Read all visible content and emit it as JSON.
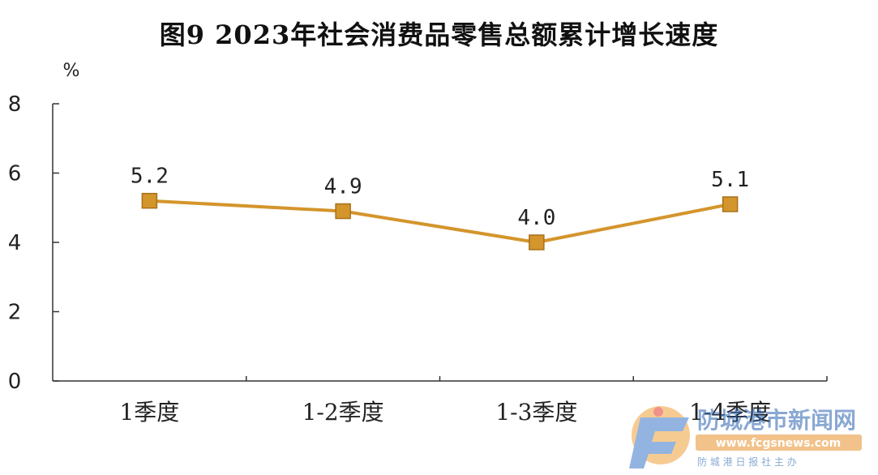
{
  "chart_data": {
    "type": "line",
    "title": "图9 2023年社会消费品零售总额累计增长速度",
    "ylabel": "%",
    "categories": [
      "1季度",
      "1-2季度",
      "1-3季度",
      "1-4季度"
    ],
    "values": [
      5.2,
      4.9,
      4.0,
      5.1
    ],
    "data_labels": [
      "5.2",
      "4.9",
      "4.0",
      "5.1"
    ],
    "ylim": [
      0,
      8
    ],
    "yticks": [
      0,
      2,
      4,
      6,
      8
    ],
    "grid": false,
    "legend": "none",
    "colors": {
      "line": "#D4952C",
      "marker": "#D4952C",
      "marker_edge": "#A8701A"
    }
  },
  "watermark": {
    "title": "防城港市新闻网",
    "url": "www.fcgsnews.com",
    "subtitle": "防 城 港 日 报 社 主 办",
    "colors": {
      "title": "#2A62B0",
      "url_bg": "#E8912B",
      "logo_blue": "#3B78C8",
      "logo_orange": "#F0A13A"
    }
  }
}
